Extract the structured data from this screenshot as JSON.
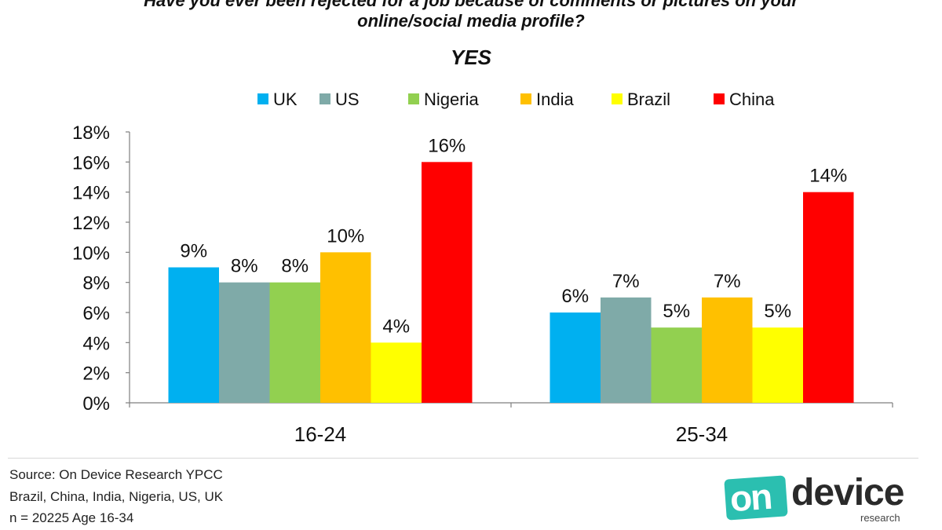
{
  "header": {
    "title_line1": "Have you ever been rejected for a job because of comments or pictures on your",
    "title_line2": "online/social media profile?",
    "subtitle": "YES"
  },
  "chart_data": {
    "type": "bar",
    "title": "Have you ever been rejected for a job because of comments or pictures on your online/social media profile?",
    "subtitle": "YES",
    "categories": [
      "16-24",
      "25-34"
    ],
    "series": [
      {
        "name": "UK",
        "color": "#00B0F0",
        "values": [
          9,
          6
        ]
      },
      {
        "name": "US",
        "color": "#7FAAA8",
        "values": [
          8,
          7
        ]
      },
      {
        "name": "Nigeria",
        "color": "#92D050",
        "values": [
          8,
          5
        ]
      },
      {
        "name": "India",
        "color": "#FFC000",
        "values": [
          10,
          7
        ]
      },
      {
        "name": "Brazil",
        "color": "#FFFF00",
        "values": [
          4,
          5
        ]
      },
      {
        "name": "China",
        "color": "#FF0000",
        "values": [
          16,
          14
        ]
      }
    ],
    "ylim": [
      0,
      18
    ],
    "yticks": [
      "0%",
      "2%",
      "4%",
      "6%",
      "8%",
      "10%",
      "12%",
      "14%",
      "16%",
      "18%"
    ],
    "value_suffix": "%",
    "legend_position": "top",
    "grid": false
  },
  "footer": {
    "source_line1": "Source: On Device Research YPCC",
    "source_line2": "Brazil, China, India, Nigeria, US, UK",
    "source_line3": "n = 20225  Age 16-34"
  },
  "logo": {
    "on": "on",
    "device": "device",
    "research": "research",
    "on_color": "#2bbfb0"
  }
}
